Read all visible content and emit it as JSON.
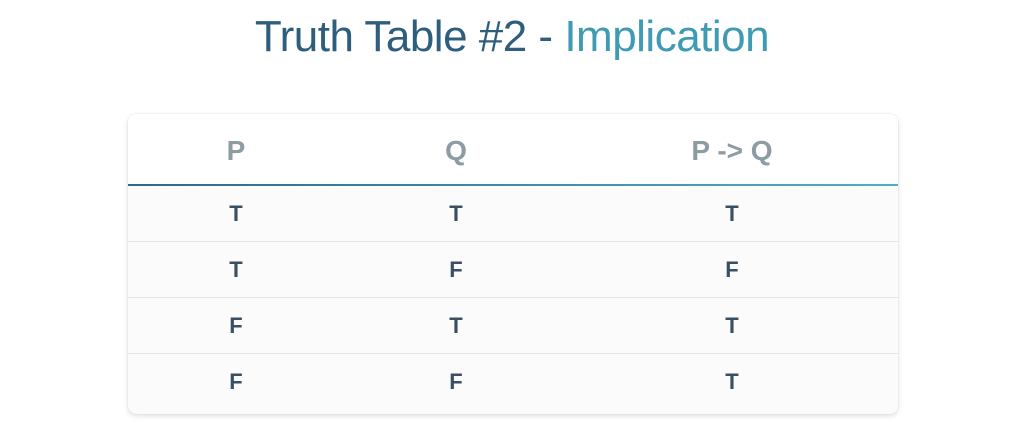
{
  "title": {
    "part1": "Truth Table #2 - ",
    "part2": "Implication"
  },
  "table": {
    "headers": [
      "P",
      "Q",
      "P  -> Q"
    ],
    "rows": [
      [
        "T",
        "T",
        "T"
      ],
      [
        "T",
        "F",
        "F"
      ],
      [
        "F",
        "T",
        "T"
      ],
      [
        "F",
        "F",
        "T"
      ]
    ]
  },
  "colors": {
    "title_primary": "#2e5e7e",
    "title_accent": "#3f9bb3",
    "header_text": "#8d9ba3",
    "cell_text": "#3a4f63",
    "header_rule_start": "#2c6a8c",
    "header_rule_end": "#52adc4"
  }
}
